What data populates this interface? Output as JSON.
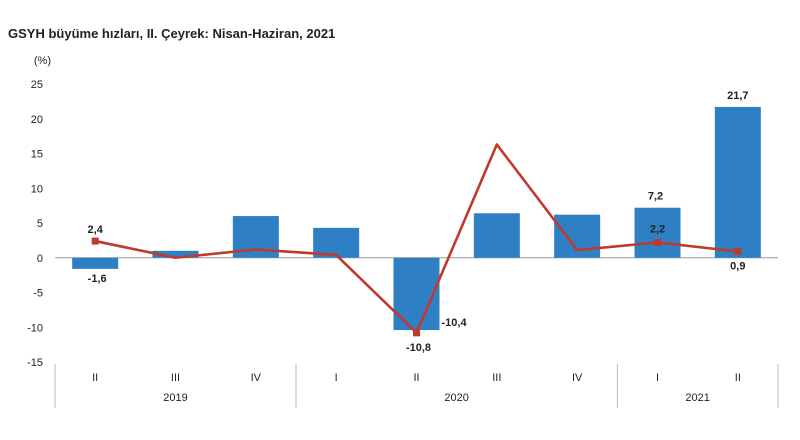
{
  "chart_data": {
    "type": "bar",
    "title": "GSYH büyüme hızları, II. Çeyrek: Nisan-Haziran, 2021",
    "ylabel": "(%)",
    "ylim": [
      -15,
      25
    ],
    "yticks": [
      25,
      20,
      15,
      10,
      5,
      0,
      -5,
      -10,
      -15
    ],
    "categories": [
      "II",
      "III",
      "IV",
      "I",
      "II",
      "III",
      "IV",
      "I",
      "II"
    ],
    "years": [
      {
        "label": "2019",
        "start": 0,
        "end": 2
      },
      {
        "label": "2020",
        "start": 3,
        "end": 6
      },
      {
        "label": "2021",
        "start": 7,
        "end": 8
      }
    ],
    "series": [
      {
        "kind": "bar",
        "color": "#2f7fc4",
        "values": [
          -1.6,
          1.0,
          6.0,
          4.3,
          -10.4,
          6.4,
          6.2,
          7.2,
          21.7
        ],
        "labels": [
          "-1,6",
          "",
          "",
          "",
          "-10,4",
          "",
          "",
          "7,2",
          "21,7"
        ]
      },
      {
        "kind": "line",
        "color": "#c0392b",
        "values": [
          2.4,
          0.0,
          1.2,
          0.4,
          -10.8,
          16.3,
          1.1,
          2.2,
          0.9
        ],
        "labels": [
          "2,4",
          "",
          "",
          "",
          "-10,8",
          "",
          "",
          "2,2",
          "0,9"
        ]
      }
    ],
    "grid": false,
    "legend": "none"
  }
}
